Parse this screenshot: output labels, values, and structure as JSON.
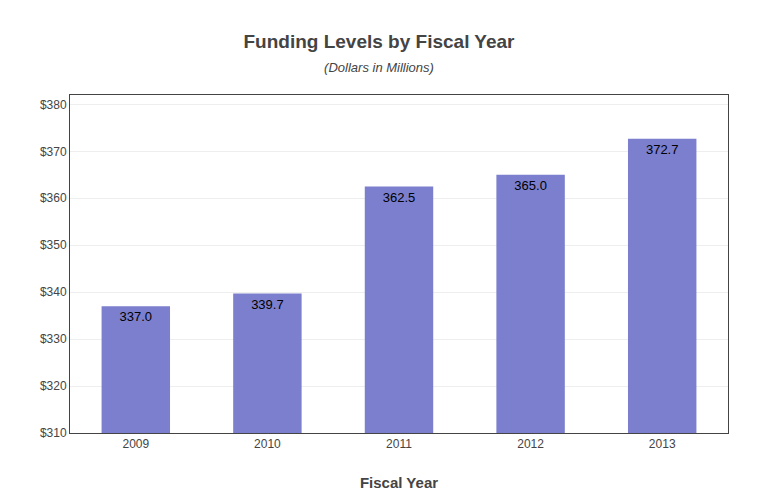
{
  "chart_data": {
    "type": "bar",
    "title": "Funding Levels by Fiscal Year",
    "subtitle": "(Dollars in Millions)",
    "xlabel": "Fiscal Year",
    "categories": [
      "2009",
      "2010",
      "2011",
      "2012",
      "2013"
    ],
    "values": [
      337.0,
      339.7,
      362.5,
      365.0,
      372.7
    ],
    "value_labels": [
      "337.0",
      "339.7",
      "362.5",
      "365.0",
      "372.7"
    ],
    "data_labels": true,
    "color": "#7b7fce",
    "ylim": [
      310,
      382
    ],
    "yticks": [
      {
        "value": 310,
        "label": "$310"
      },
      {
        "value": 320,
        "label": "$320"
      },
      {
        "value": 330,
        "label": "$330"
      },
      {
        "value": 340,
        "label": "$340"
      },
      {
        "value": 350,
        "label": "$350"
      },
      {
        "value": 360,
        "label": "$360"
      },
      {
        "value": 370,
        "label": "$370"
      },
      {
        "value": 380,
        "label": "$380"
      }
    ],
    "grid": true
  }
}
